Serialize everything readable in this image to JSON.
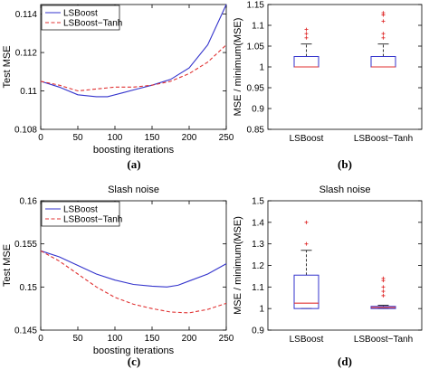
{
  "chart_data": [
    {
      "type": "line",
      "caption": "(a)",
      "title": "",
      "xlabel": "boosting iterations",
      "ylabel": "Test MSE",
      "xlim": [
        0,
        250
      ],
      "ylim": [
        0.108,
        0.1145
      ],
      "xticks": [
        0,
        50,
        100,
        150,
        200,
        250
      ],
      "yticks": [
        0.108,
        0.11,
        0.112,
        0.114
      ],
      "ytick_labels": [
        "0.108",
        "0.11",
        "0.112",
        "0.114"
      ],
      "legend_position": "top-left",
      "series": [
        {
          "name": "LSBoost",
          "style": "solid",
          "color": "#3333cc",
          "x": [
            0,
            25,
            50,
            75,
            90,
            110,
            130,
            150,
            175,
            200,
            225,
            250
          ],
          "y": [
            0.1105,
            0.1102,
            0.1098,
            0.1097,
            0.1097,
            0.1099,
            0.1101,
            0.1103,
            0.1106,
            0.1112,
            0.1124,
            0.1145
          ]
        },
        {
          "name": "LSBoost−Tanh",
          "style": "dashed",
          "color": "#e03030",
          "x": [
            0,
            25,
            50,
            75,
            100,
            125,
            150,
            175,
            200,
            225,
            250
          ],
          "y": [
            0.1105,
            0.1103,
            0.11,
            0.1101,
            0.1102,
            0.1102,
            0.1103,
            0.1105,
            0.1109,
            0.1115,
            0.1124
          ]
        }
      ]
    },
    {
      "type": "boxplot",
      "caption": "(b)",
      "title": "",
      "xlabel": "",
      "ylabel": "MSE / minimum(MSE)",
      "ylim": [
        0.85,
        1.15
      ],
      "yticks": [
        0.85,
        0.9,
        0.95,
        1.0,
        1.05,
        1.1,
        1.15
      ],
      "ytick_labels": [
        "0.85",
        "0.9",
        "0.95",
        "1",
        "1.05",
        "1.1",
        "1.15"
      ],
      "categories": [
        "LSBoost",
        "LSBoost−Tanh"
      ],
      "boxes": [
        {
          "whisker_low": 1.0,
          "q1": 1.0,
          "median": 1.0,
          "q3": 1.025,
          "whisker_high": 1.055,
          "outliers": [
            1.07,
            1.08,
            1.09
          ]
        },
        {
          "whisker_low": 1.0,
          "q1": 1.0,
          "median": 1.0,
          "q3": 1.025,
          "whisker_high": 1.055,
          "outliers": [
            1.07,
            1.08,
            1.11,
            1.125,
            1.13
          ]
        }
      ]
    },
    {
      "type": "line",
      "caption": "(c)",
      "title": "Slash noise",
      "xlabel": "boosting iterations",
      "ylabel": "Test MSE",
      "xlim": [
        0,
        250
      ],
      "ylim": [
        0.145,
        0.16
      ],
      "xticks": [
        0,
        50,
        100,
        150,
        200,
        250
      ],
      "yticks": [
        0.145,
        0.15,
        0.155,
        0.16
      ],
      "ytick_labels": [
        "0.145",
        "0.15",
        "0.155",
        "0.16"
      ],
      "legend_position": "top-left",
      "series": [
        {
          "name": "LSBoost",
          "style": "solid",
          "color": "#3333cc",
          "x": [
            0,
            25,
            50,
            75,
            100,
            125,
            150,
            170,
            185,
            200,
            225,
            250
          ],
          "y": [
            0.1542,
            0.1535,
            0.1525,
            0.1515,
            0.1508,
            0.1503,
            0.1501,
            0.15,
            0.1502,
            0.1507,
            0.1515,
            0.1527
          ]
        },
        {
          "name": "LSBoost−Tanh",
          "style": "dashed",
          "color": "#e03030",
          "x": [
            0,
            25,
            50,
            75,
            100,
            125,
            150,
            175,
            200,
            225,
            250
          ],
          "y": [
            0.1542,
            0.153,
            0.1515,
            0.15,
            0.1488,
            0.148,
            0.1475,
            0.1471,
            0.147,
            0.1474,
            0.1481
          ]
        }
      ]
    },
    {
      "type": "boxplot",
      "caption": "(d)",
      "title": "Slash noise",
      "xlabel": "",
      "ylabel": "MSE / minimum(MSE)",
      "ylim": [
        0.9,
        1.5
      ],
      "yticks": [
        0.9,
        1.0,
        1.1,
        1.2,
        1.3,
        1.4,
        1.5
      ],
      "ytick_labels": [
        "0.9",
        "1",
        "1.1",
        "1.2",
        "1.3",
        "1.4",
        "1.5"
      ],
      "categories": [
        "LSBoost",
        "LSBoost−Tanh"
      ],
      "boxes": [
        {
          "whisker_low": 1.0,
          "q1": 1.0,
          "median": 1.025,
          "q3": 1.155,
          "whisker_high": 1.27,
          "outliers": [
            1.3,
            1.4
          ]
        },
        {
          "whisker_low": 1.0,
          "q1": 1.0,
          "median": 1.005,
          "q3": 1.01,
          "whisker_high": 1.015,
          "outliers": [
            1.06,
            1.08,
            1.1,
            1.13,
            1.14
          ]
        }
      ]
    }
  ]
}
